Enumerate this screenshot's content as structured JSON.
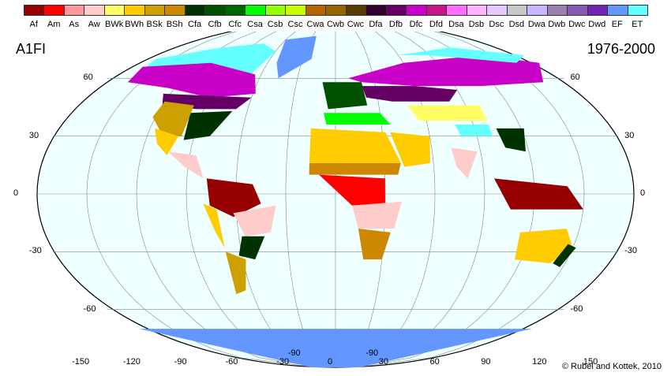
{
  "legend": {
    "classes": [
      {
        "code": "Af",
        "color": "#960000"
      },
      {
        "code": "Am",
        "color": "#ff0000"
      },
      {
        "code": "As",
        "color": "#ff9999"
      },
      {
        "code": "Aw",
        "color": "#ffcccc"
      },
      {
        "code": "BWk",
        "color": "#ffff64"
      },
      {
        "code": "BWh",
        "color": "#ffcc00"
      },
      {
        "code": "BSk",
        "color": "#cca000"
      },
      {
        "code": "BSh",
        "color": "#cc8800"
      },
      {
        "code": "Cfa",
        "color": "#003200"
      },
      {
        "code": "Cfb",
        "color": "#005000"
      },
      {
        "code": "Cfc",
        "color": "#006400"
      },
      {
        "code": "Csa",
        "color": "#00ff00"
      },
      {
        "code": "Csb",
        "color": "#96ff00"
      },
      {
        "code": "Csc",
        "color": "#c8ff00"
      },
      {
        "code": "Cwa",
        "color": "#b46400"
      },
      {
        "code": "Cwb",
        "color": "#966400"
      },
      {
        "code": "Cwc",
        "color": "#5a3c00"
      },
      {
        "code": "Dfa",
        "color": "#320032"
      },
      {
        "code": "Dfb",
        "color": "#640064"
      },
      {
        "code": "Dfc",
        "color": "#c800c8"
      },
      {
        "code": "Dfd",
        "color": "#c71585"
      },
      {
        "code": "Dsa",
        "color": "#ff6dff"
      },
      {
        "code": "Dsb",
        "color": "#ffb4ff"
      },
      {
        "code": "Dsc",
        "color": "#e6c8ff"
      },
      {
        "code": "Dsd",
        "color": "#c8c8c8"
      },
      {
        "code": "Dwa",
        "color": "#c8b4ff"
      },
      {
        "code": "Dwb",
        "color": "#9a7fb3"
      },
      {
        "code": "Dwc",
        "color": "#8859b3"
      },
      {
        "code": "Dwd",
        "color": "#6f24b3"
      },
      {
        "code": "EF",
        "color": "#6496ff"
      },
      {
        "code": "ET",
        "color": "#64ffff"
      }
    ]
  },
  "scenario": "A1FI",
  "period": "1976-2000",
  "credit": "© Rubel and Kottek, 2010",
  "latitudes": [
    "60",
    "30",
    "0",
    "-30",
    "-60",
    "-90"
  ],
  "longitudes": [
    "-150",
    "-120",
    "-90",
    "-60",
    "-30",
    "0",
    "30",
    "60",
    "90",
    "120",
    "150"
  ],
  "colors": {
    "ocean": "#f0ffff",
    "graticule": "#888888"
  }
}
